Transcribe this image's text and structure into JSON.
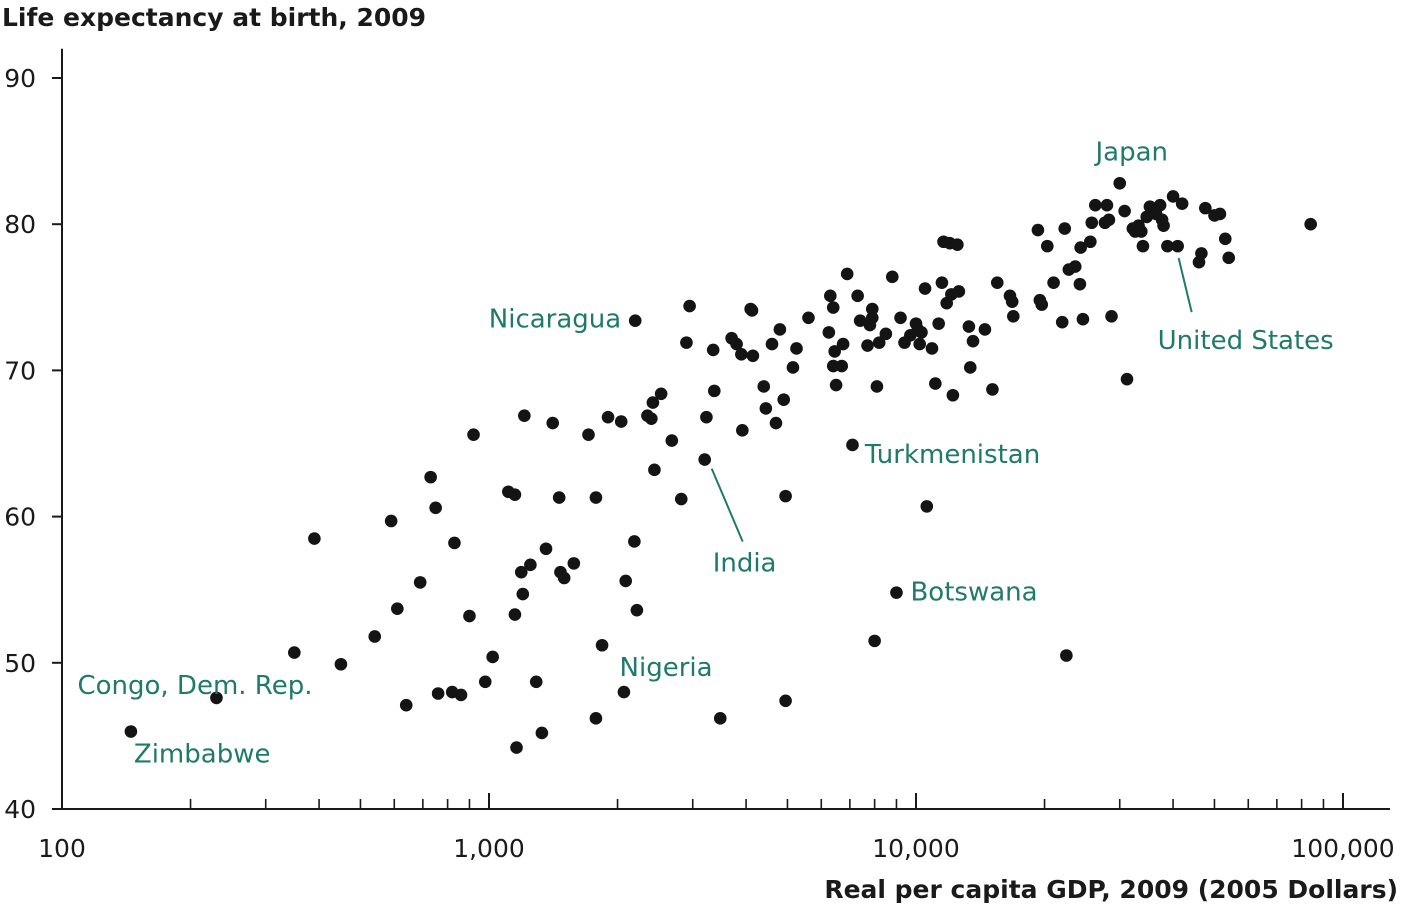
{
  "chart_data": {
    "type": "scatter",
    "title": "",
    "ylabel": "Life expectancy at birth, 2009",
    "xlabel": "Real per capita GDP, 2009 (2005 Dollars)",
    "x_scale": "log",
    "xlim": [
      100,
      120000
    ],
    "ylim": [
      40,
      92
    ],
    "xticks": [
      {
        "value": 100,
        "label": "100"
      },
      {
        "value": 1000,
        "label": "1,000"
      },
      {
        "value": 10000,
        "label": "10,000"
      },
      {
        "value": 100000,
        "label": "100,000"
      }
    ],
    "yticks": [
      {
        "value": 40,
        "label": "40"
      },
      {
        "value": 50,
        "label": "50"
      },
      {
        "value": 60,
        "label": "60"
      },
      {
        "value": 70,
        "label": "70"
      },
      {
        "value": 80,
        "label": "80"
      },
      {
        "value": 90,
        "label": "90"
      }
    ],
    "grid": false,
    "point_color": "#141414",
    "annotation_color": "#1f7a6c",
    "annotations": [
      {
        "label": "Japan",
        "x": 30000,
        "y": 82.8
      },
      {
        "label": "United States",
        "x": 41000,
        "y": 78.5
      },
      {
        "label": "Nicaragua",
        "x": 2200,
        "y": 73.4
      },
      {
        "label": "Turkmenistan",
        "x": 7000,
        "y": 64.9
      },
      {
        "label": "India",
        "x": 3200,
        "y": 63.9
      },
      {
        "label": "Botswana",
        "x": 9000,
        "y": 54.8
      },
      {
        "label": "Nigeria",
        "x": 2000,
        "y": 48.0
      },
      {
        "label": "Congo, Dem. Rep.",
        "x": 230,
        "y": 47.6
      },
      {
        "label": "Zimbabwe",
        "x": 145,
        "y": 45.3
      }
    ],
    "points": [
      [
        145,
        45.3
      ],
      [
        230,
        47.6
      ],
      [
        350,
        50.7
      ],
      [
        390,
        58.5
      ],
      [
        450,
        49.9
      ],
      [
        540,
        51.8
      ],
      [
        590,
        59.7
      ],
      [
        610,
        53.7
      ],
      [
        640,
        47.1
      ],
      [
        690,
        55.5
      ],
      [
        730,
        62.7
      ],
      [
        760,
        47.9
      ],
      [
        750,
        60.6
      ],
      [
        820,
        48.0
      ],
      [
        830,
        58.2
      ],
      [
        860,
        47.8
      ],
      [
        900,
        53.2
      ],
      [
        920,
        65.6
      ],
      [
        980,
        48.7
      ],
      [
        1020,
        50.4
      ],
      [
        1110,
        61.7
      ],
      [
        1150,
        61.5
      ],
      [
        1150,
        53.3
      ],
      [
        1160,
        44.2
      ],
      [
        1190,
        56.2
      ],
      [
        1200,
        54.7
      ],
      [
        1210,
        66.9
      ],
      [
        1250,
        56.7
      ],
      [
        1290,
        48.7
      ],
      [
        1330,
        45.2
      ],
      [
        1360,
        57.8
      ],
      [
        1410,
        66.4
      ],
      [
        1460,
        61.3
      ],
      [
        1470,
        56.2
      ],
      [
        1500,
        55.8
      ],
      [
        1580,
        56.8
      ],
      [
        1710,
        65.6
      ],
      [
        1780,
        61.3
      ],
      [
        1780,
        46.2
      ],
      [
        1840,
        51.2
      ],
      [
        1900,
        66.8
      ],
      [
        2040,
        66.5
      ],
      [
        2070,
        48.0
      ],
      [
        2090,
        55.6
      ],
      [
        2190,
        58.3
      ],
      [
        2200,
        73.4
      ],
      [
        2220,
        53.6
      ],
      [
        2350,
        66.9
      ],
      [
        2400,
        66.7
      ],
      [
        2420,
        67.8
      ],
      [
        2440,
        63.2
      ],
      [
        2530,
        68.4
      ],
      [
        2680,
        65.2
      ],
      [
        2820,
        61.2
      ],
      [
        2900,
        71.9
      ],
      [
        2950,
        74.4
      ],
      [
        3230,
        66.8
      ],
      [
        3200,
        63.9
      ],
      [
        3350,
        71.4
      ],
      [
        3370,
        68.6
      ],
      [
        3480,
        46.2
      ],
      [
        3700,
        72.2
      ],
      [
        3800,
        71.8
      ],
      [
        3900,
        71.1
      ],
      [
        3920,
        65.9
      ],
      [
        4100,
        74.2
      ],
      [
        4130,
        74.1
      ],
      [
        4150,
        71.0
      ],
      [
        4400,
        68.9
      ],
      [
        4450,
        67.4
      ],
      [
        4600,
        71.8
      ],
      [
        4700,
        66.4
      ],
      [
        4800,
        72.8
      ],
      [
        4900,
        68.0
      ],
      [
        4950,
        61.4
      ],
      [
        4950,
        47.4
      ],
      [
        5150,
        70.2
      ],
      [
        5250,
        71.5
      ],
      [
        5600,
        73.6
      ],
      [
        6250,
        72.6
      ],
      [
        6300,
        75.1
      ],
      [
        6400,
        70.3
      ],
      [
        6400,
        74.3
      ],
      [
        6450,
        71.3
      ],
      [
        6500,
        69.0
      ],
      [
        6700,
        70.3
      ],
      [
        6750,
        71.8
      ],
      [
        6900,
        76.6
      ],
      [
        7100,
        64.9
      ],
      [
        7300,
        75.1
      ],
      [
        7400,
        73.4
      ],
      [
        7700,
        71.7
      ],
      [
        7800,
        73.1
      ],
      [
        7900,
        73.6
      ],
      [
        7900,
        74.2
      ],
      [
        8000,
        51.5
      ],
      [
        8100,
        68.9
      ],
      [
        8200,
        71.9
      ],
      [
        8500,
        72.5
      ],
      [
        8800,
        76.4
      ],
      [
        9000,
        54.8
      ],
      [
        9200,
        73.6
      ],
      [
        9400,
        71.9
      ],
      [
        9700,
        72.4
      ],
      [
        10000,
        73.2
      ],
      [
        10100,
        72.8
      ],
      [
        10200,
        71.8
      ],
      [
        10300,
        72.6
      ],
      [
        10500,
        75.6
      ],
      [
        10600,
        60.7
      ],
      [
        10900,
        71.5
      ],
      [
        11100,
        69.1
      ],
      [
        11300,
        73.2
      ],
      [
        11500,
        76.0
      ],
      [
        11600,
        78.8
      ],
      [
        11800,
        74.6
      ],
      [
        12000,
        78.7
      ],
      [
        12100,
        75.2
      ],
      [
        12200,
        68.3
      ],
      [
        12500,
        78.6
      ],
      [
        12600,
        75.4
      ],
      [
        13300,
        73.0
      ],
      [
        13400,
        70.2
      ],
      [
        13600,
        72.0
      ],
      [
        14500,
        72.8
      ],
      [
        15100,
        68.7
      ],
      [
        15500,
        76.0
      ],
      [
        16600,
        75.1
      ],
      [
        16800,
        74.7
      ],
      [
        16900,
        73.7
      ],
      [
        19300,
        79.6
      ],
      [
        19500,
        74.8
      ],
      [
        19700,
        74.5
      ],
      [
        20300,
        78.5
      ],
      [
        21000,
        76.0
      ],
      [
        22000,
        73.3
      ],
      [
        22300,
        79.7
      ],
      [
        22500,
        50.5
      ],
      [
        22800,
        76.9
      ],
      [
        23600,
        77.1
      ],
      [
        24200,
        75.9
      ],
      [
        24300,
        78.4
      ],
      [
        24600,
        73.5
      ],
      [
        25600,
        78.8
      ],
      [
        25800,
        80.1
      ],
      [
        26300,
        81.3
      ],
      [
        27700,
        80.1
      ],
      [
        28000,
        81.3
      ],
      [
        28300,
        80.3
      ],
      [
        28700,
        73.7
      ],
      [
        30000,
        82.8
      ],
      [
        30800,
        80.9
      ],
      [
        31200,
        69.4
      ],
      [
        32200,
        79.7
      ],
      [
        32600,
        79.5
      ],
      [
        33200,
        79.9
      ],
      [
        33700,
        79.5
      ],
      [
        34000,
        78.5
      ],
      [
        34700,
        80.5
      ],
      [
        35300,
        81.2
      ],
      [
        36500,
        80.7
      ],
      [
        37300,
        81.3
      ],
      [
        37700,
        80.3
      ],
      [
        38000,
        79.9
      ],
      [
        38800,
        78.5
      ],
      [
        40000,
        81.9
      ],
      [
        41000,
        78.5
      ],
      [
        42000,
        81.4
      ],
      [
        46000,
        77.4
      ],
      [
        46600,
        78.0
      ],
      [
        47600,
        81.1
      ],
      [
        50000,
        80.6
      ],
      [
        51500,
        80.7
      ],
      [
        53000,
        79.0
      ],
      [
        54000,
        77.7
      ],
      [
        84000,
        80.0
      ]
    ]
  }
}
